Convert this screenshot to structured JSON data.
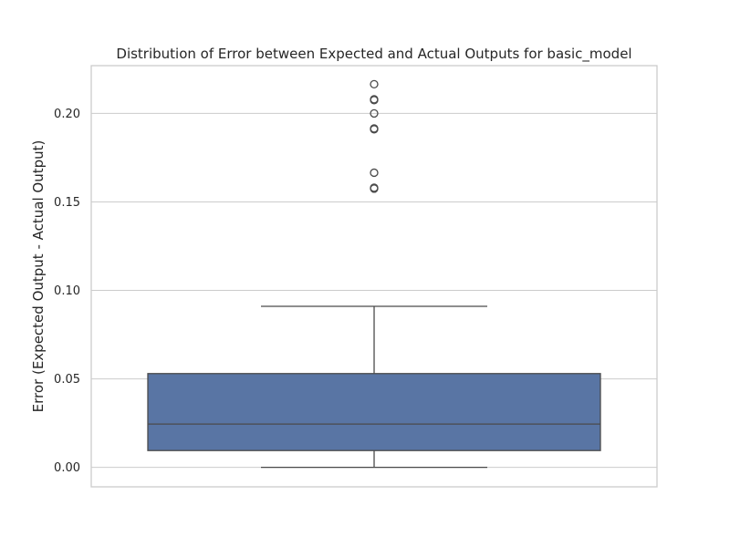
{
  "chart_data": {
    "type": "box",
    "title": "Distribution of Error between Expected and Actual Outputs for basic_model",
    "xlabel": "",
    "ylabel": "Error (Expected Output - Actual Output)",
    "ylim": [
      -0.011,
      0.227
    ],
    "yticks": [
      0.0,
      0.05,
      0.1,
      0.15,
      0.2
    ],
    "ytick_labels": [
      "0.00",
      "0.05",
      "0.10",
      "0.15",
      "0.20"
    ],
    "grid": true,
    "box": {
      "whisker_low": 0.0,
      "q1": 0.0095,
      "median": 0.0245,
      "q3": 0.053,
      "whisker_high": 0.091,
      "outliers": [
        0.2165,
        0.208,
        0.2075,
        0.2,
        0.1915,
        0.191,
        0.1665,
        0.158,
        0.1575
      ]
    },
    "colors": {
      "box_fill": "#5975a4",
      "line": "#4a4a4a",
      "grid": "#cccccc",
      "spine": "#cccccc"
    }
  }
}
